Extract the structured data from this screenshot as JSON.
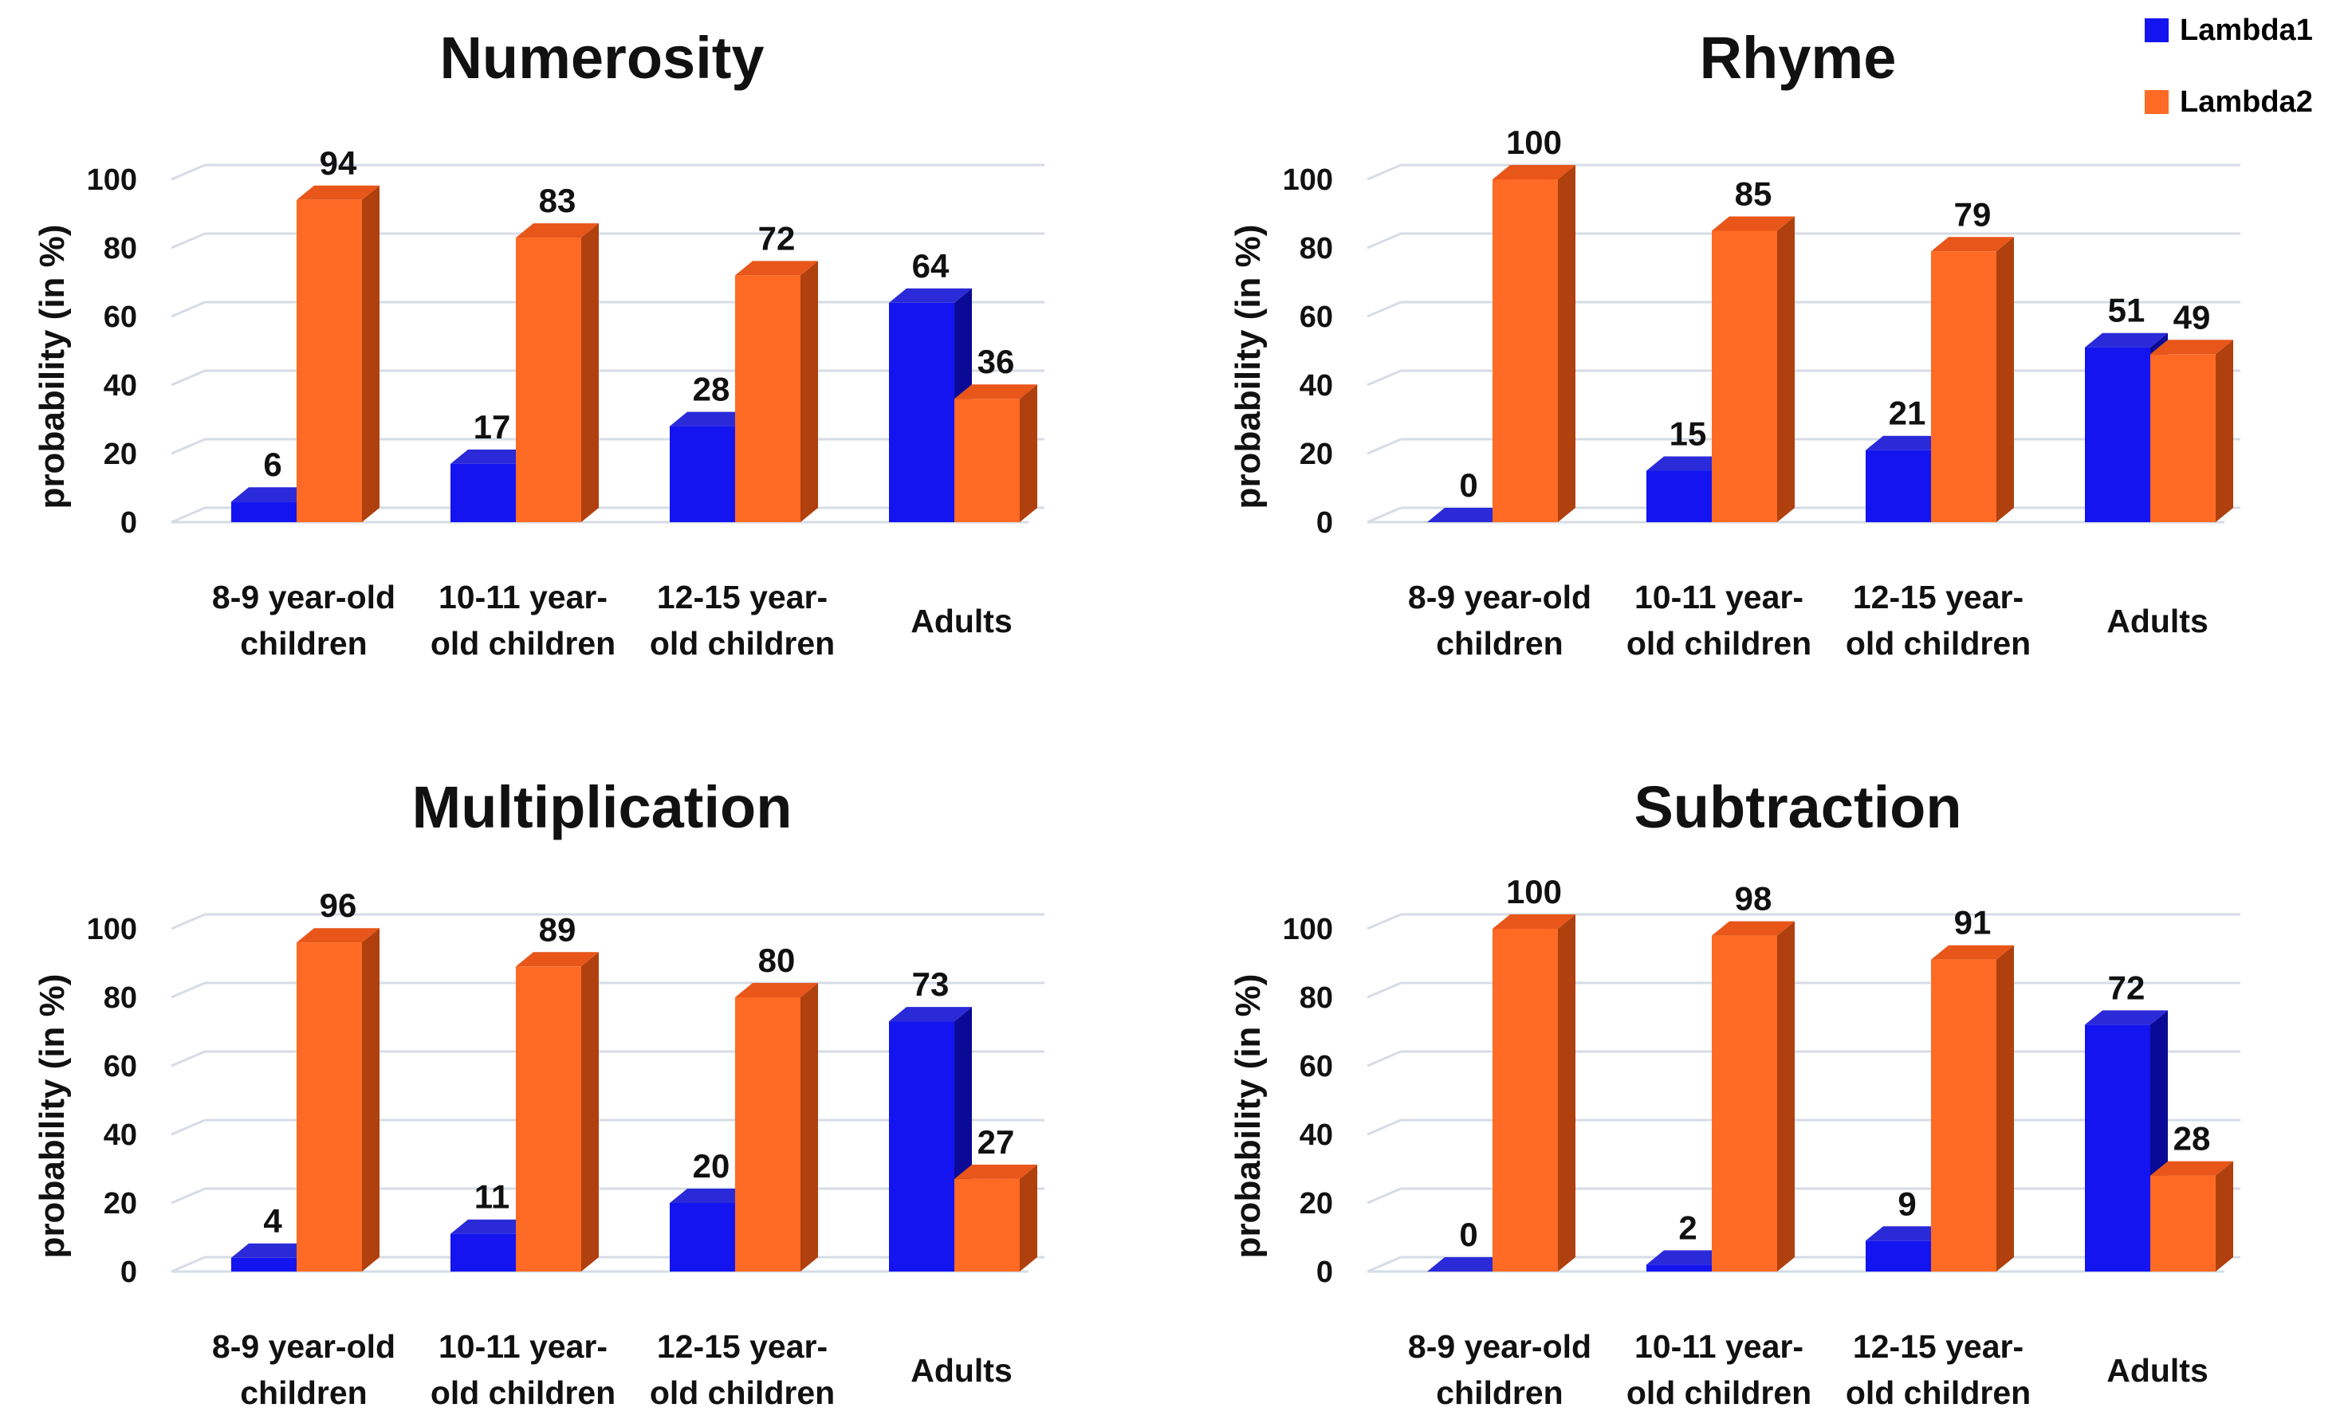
{
  "legend": {
    "series1": "Lambda1",
    "series2": "Lambda2"
  },
  "colors": {
    "lambda1": "#1414f0",
    "lambda1_side": "#0a0a96",
    "lambda1_top": "#2a2ad8",
    "lambda2": "#ff6a24",
    "lambda2_side": "#b0400e",
    "lambda2_top": "#e8561a",
    "grid": "#d6dce6"
  },
  "chart_data": [
    {
      "type": "bar",
      "title": "Numerosity",
      "ylabel": "probability (in %)",
      "xlabel": "",
      "ylim": [
        0,
        100
      ],
      "yticks": [
        "0",
        "20",
        "40",
        "60",
        "80",
        "100"
      ],
      "categories": [
        [
          "8-9 year-old",
          "children"
        ],
        [
          "10-11 year-",
          "old children"
        ],
        [
          "12-15 year-",
          "old children"
        ],
        [
          "Adults"
        ]
      ],
      "series": [
        {
          "name": "Lambda1",
          "values": [
            6,
            17,
            28,
            64
          ]
        },
        {
          "name": "Lambda2",
          "values": [
            94,
            83,
            72,
            36
          ]
        }
      ]
    },
    {
      "type": "bar",
      "title": "Rhyme",
      "ylabel": "probability (in %)",
      "xlabel": "",
      "ylim": [
        0,
        100
      ],
      "yticks": [
        "0",
        "20",
        "40",
        "60",
        "80",
        "100"
      ],
      "categories": [
        [
          "8-9 year-old",
          "children"
        ],
        [
          "10-11 year-",
          "old children"
        ],
        [
          "12-15 year-",
          "old children"
        ],
        [
          "Adults"
        ]
      ],
      "series": [
        {
          "name": "Lambda1",
          "values": [
            0,
            15,
            21,
            51
          ]
        },
        {
          "name": "Lambda2",
          "values": [
            100,
            85,
            79,
            49
          ]
        }
      ]
    },
    {
      "type": "bar",
      "title": "Multiplication",
      "ylabel": "probability (in %)",
      "xlabel": "",
      "ylim": [
        0,
        100
      ],
      "yticks": [
        "0",
        "20",
        "40",
        "60",
        "80",
        "100"
      ],
      "categories": [
        [
          "8-9 year-old",
          "children"
        ],
        [
          "10-11 year-",
          "old children"
        ],
        [
          "12-15 year-",
          "old children"
        ],
        [
          "Adults"
        ]
      ],
      "series": [
        {
          "name": "Lambda1",
          "values": [
            4,
            11,
            20,
            73
          ]
        },
        {
          "name": "Lambda2",
          "values": [
            96,
            89,
            80,
            27
          ]
        }
      ]
    },
    {
      "type": "bar",
      "title": "Subtraction",
      "ylabel": "probability (in %)",
      "xlabel": "",
      "ylim": [
        0,
        100
      ],
      "yticks": [
        "0",
        "20",
        "40",
        "60",
        "80",
        "100"
      ],
      "categories": [
        [
          "8-9 year-old",
          "children"
        ],
        [
          "10-11 year-",
          "old children"
        ],
        [
          "12-15 year-",
          "old children"
        ],
        [
          "Adults"
        ]
      ],
      "series": [
        {
          "name": "Lambda1",
          "values": [
            0,
            2,
            9,
            72
          ]
        },
        {
          "name": "Lambda2",
          "values": [
            100,
            98,
            91,
            28
          ]
        }
      ]
    }
  ]
}
